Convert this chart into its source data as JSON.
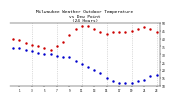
{
  "title": "Milwaukee Weather Outdoor Temperature\nvs Dew Point\n(24 Hours)",
  "title_fontsize": 3.2,
  "background_color": "#ffffff",
  "temp_color": "#cc0000",
  "dew_color": "#0000cc",
  "grid_color": "#bbbbbb",
  "temp_x": [
    0,
    1,
    2,
    3,
    4,
    5,
    6,
    7,
    8,
    9,
    10,
    11,
    12,
    13,
    14,
    15,
    16,
    17,
    18,
    19,
    20,
    21,
    22,
    23
  ],
  "temp_y": [
    40,
    39,
    37,
    36,
    35,
    34,
    33,
    35,
    38,
    42,
    46,
    48,
    48,
    46,
    44,
    43,
    44,
    44,
    44,
    45,
    46,
    47,
    46,
    44
  ],
  "dew_x": [
    0,
    1,
    2,
    3,
    4,
    5,
    6,
    7,
    8,
    9,
    10,
    11,
    12,
    13,
    14,
    15,
    16,
    17,
    18,
    19,
    20,
    21,
    22,
    23
  ],
  "dew_y": [
    34,
    34,
    33,
    32,
    31,
    30,
    30,
    29,
    28,
    28,
    26,
    24,
    22,
    20,
    18,
    15,
    13,
    12,
    12,
    12,
    13,
    14,
    16,
    17
  ],
  "ylim": [
    10,
    50
  ],
  "xlim": [
    -0.5,
    23.5
  ],
  "yticks": [
    10,
    15,
    20,
    25,
    30,
    35,
    40,
    45,
    50
  ],
  "xticks": [
    1,
    3,
    5,
    7,
    9,
    11,
    13,
    15,
    17,
    19,
    21,
    23
  ],
  "vgrid_positions": [
    3,
    7,
    11,
    15,
    19,
    23
  ],
  "marker_size": 2.5
}
